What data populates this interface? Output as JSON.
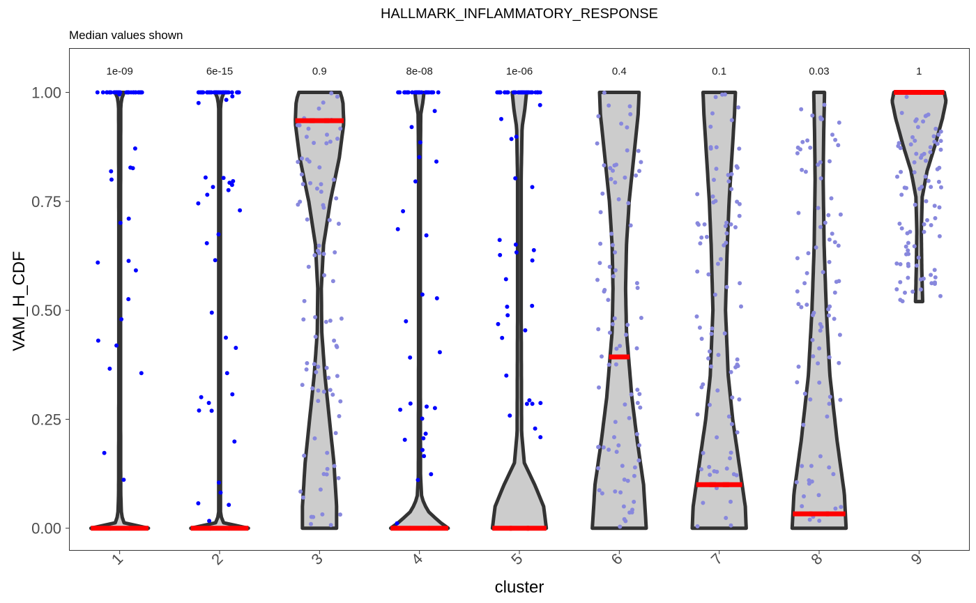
{
  "chart_data": {
    "type": "violin",
    "title": "HALLMARK_INFLAMMATORY_RESPONSE",
    "subtitle": "Median values shown",
    "xlabel": "cluster",
    "ylabel": "VAM_H_CDF",
    "ylim": [
      -0.05,
      1.1
    ],
    "yticks": [
      "0.00",
      "0.25",
      "0.50",
      "0.75",
      "1.00"
    ],
    "ytick_values": [
      0,
      0.25,
      0.5,
      0.75,
      1.0
    ],
    "grid": false,
    "violin_fill": "#cccccc",
    "violin_stroke": "#333333",
    "median_color": "#ff0000",
    "point_colors": {
      "significant": "#0000ff",
      "nonsignificant": "#8888dd"
    },
    "clusters": [
      {
        "label": "1",
        "pvalue": "1e-09",
        "median": 0.0,
        "ymin": 0.0,
        "ymax": 1.0,
        "point_style": "significant",
        "profile": [
          [
            0,
            0.32
          ],
          [
            0.012,
            0.05
          ],
          [
            0.03,
            0.02
          ],
          [
            0.08,
            0.012
          ],
          [
            0.3,
            0.01
          ],
          [
            0.7,
            0.01
          ],
          [
            0.97,
            0.012
          ],
          [
            0.993,
            0.03
          ],
          [
            1,
            0.05
          ]
        ]
      },
      {
        "label": "2",
        "pvalue": "6e-15",
        "median": 0.0,
        "ymin": 0.0,
        "ymax": 1.0,
        "point_style": "significant",
        "profile": [
          [
            0,
            0.32
          ],
          [
            0.01,
            0.05
          ],
          [
            0.03,
            0.01
          ],
          [
            0.5,
            0.01
          ],
          [
            0.97,
            0.01
          ],
          [
            0.993,
            0.03
          ],
          [
            1,
            0.05
          ]
        ]
      },
      {
        "label": "3",
        "pvalue": "0.9",
        "median": 0.935,
        "ymin": 0.0,
        "ymax": 1.0,
        "point_style": "nonsignificant",
        "profile": [
          [
            0,
            0.19
          ],
          [
            0.05,
            0.19
          ],
          [
            0.15,
            0.16
          ],
          [
            0.25,
            0.11
          ],
          [
            0.35,
            0.06
          ],
          [
            0.45,
            0.025
          ],
          [
            0.55,
            0.02
          ],
          [
            0.65,
            0.045
          ],
          [
            0.75,
            0.12
          ],
          [
            0.85,
            0.22
          ],
          [
            0.93,
            0.27
          ],
          [
            0.98,
            0.26
          ],
          [
            1,
            0.23
          ]
        ]
      },
      {
        "label": "4",
        "pvalue": "8e-08",
        "median": 0.0,
        "ymin": 0.0,
        "ymax": 1.0,
        "point_style": "significant",
        "profile": [
          [
            0,
            0.32
          ],
          [
            0.015,
            0.22
          ],
          [
            0.04,
            0.09
          ],
          [
            0.07,
            0.025
          ],
          [
            0.12,
            0.012
          ],
          [
            0.4,
            0.01
          ],
          [
            0.85,
            0.01
          ],
          [
            0.95,
            0.015
          ],
          [
            0.98,
            0.04
          ],
          [
            1,
            0.05
          ]
        ]
      },
      {
        "label": "5",
        "pvalue": "1e-06",
        "median": 0.0,
        "ymin": 0.0,
        "ymax": 1.0,
        "point_style": "significant",
        "profile": [
          [
            0,
            0.3
          ],
          [
            0.05,
            0.27
          ],
          [
            0.1,
            0.17
          ],
          [
            0.15,
            0.055
          ],
          [
            0.22,
            0.025
          ],
          [
            0.5,
            0.02
          ],
          [
            0.8,
            0.02
          ],
          [
            0.92,
            0.03
          ],
          [
            0.96,
            0.06
          ],
          [
            1,
            0.08
          ]
        ]
      },
      {
        "label": "6",
        "pvalue": "0.4",
        "median": 0.393,
        "ymin": 0.0,
        "ymax": 1.0,
        "point_style": "nonsignificant",
        "profile": [
          [
            0,
            0.3
          ],
          [
            0.1,
            0.27
          ],
          [
            0.2,
            0.2
          ],
          [
            0.3,
            0.14
          ],
          [
            0.45,
            0.08
          ],
          [
            0.55,
            0.07
          ],
          [
            0.65,
            0.08
          ],
          [
            0.75,
            0.11
          ],
          [
            0.85,
            0.16
          ],
          [
            0.95,
            0.21
          ],
          [
            1,
            0.22
          ]
        ]
      },
      {
        "label": "7",
        "pvalue": "0.1",
        "median": 0.1,
        "ymin": 0.0,
        "ymax": 1.0,
        "point_style": "nonsignificant",
        "profile": [
          [
            0,
            0.3
          ],
          [
            0.05,
            0.29
          ],
          [
            0.15,
            0.22
          ],
          [
            0.25,
            0.15
          ],
          [
            0.35,
            0.1
          ],
          [
            0.5,
            0.07
          ],
          [
            0.65,
            0.09
          ],
          [
            0.75,
            0.11
          ],
          [
            0.85,
            0.14
          ],
          [
            0.95,
            0.17
          ],
          [
            1,
            0.18
          ]
        ]
      },
      {
        "label": "8",
        "pvalue": "0.03",
        "median": 0.033,
        "ymin": 0.0,
        "ymax": 1.0,
        "point_style": "nonsignificant",
        "profile": [
          [
            0,
            0.3
          ],
          [
            0.08,
            0.28
          ],
          [
            0.2,
            0.2
          ],
          [
            0.35,
            0.12
          ],
          [
            0.5,
            0.08
          ],
          [
            0.65,
            0.055
          ],
          [
            0.8,
            0.045
          ],
          [
            0.9,
            0.05
          ],
          [
            1,
            0.06
          ]
        ]
      },
      {
        "label": "9",
        "pvalue": "1",
        "median": 1.0,
        "ymin": 0.52,
        "ymax": 1.0,
        "point_style": "nonsignificant",
        "profile": [
          [
            0.52,
            0.04
          ],
          [
            0.6,
            0.03
          ],
          [
            0.68,
            0.025
          ],
          [
            0.76,
            0.035
          ],
          [
            0.82,
            0.09
          ],
          [
            0.88,
            0.18
          ],
          [
            0.94,
            0.26
          ],
          [
            0.98,
            0.3
          ],
          [
            1,
            0.28
          ]
        ]
      }
    ]
  }
}
